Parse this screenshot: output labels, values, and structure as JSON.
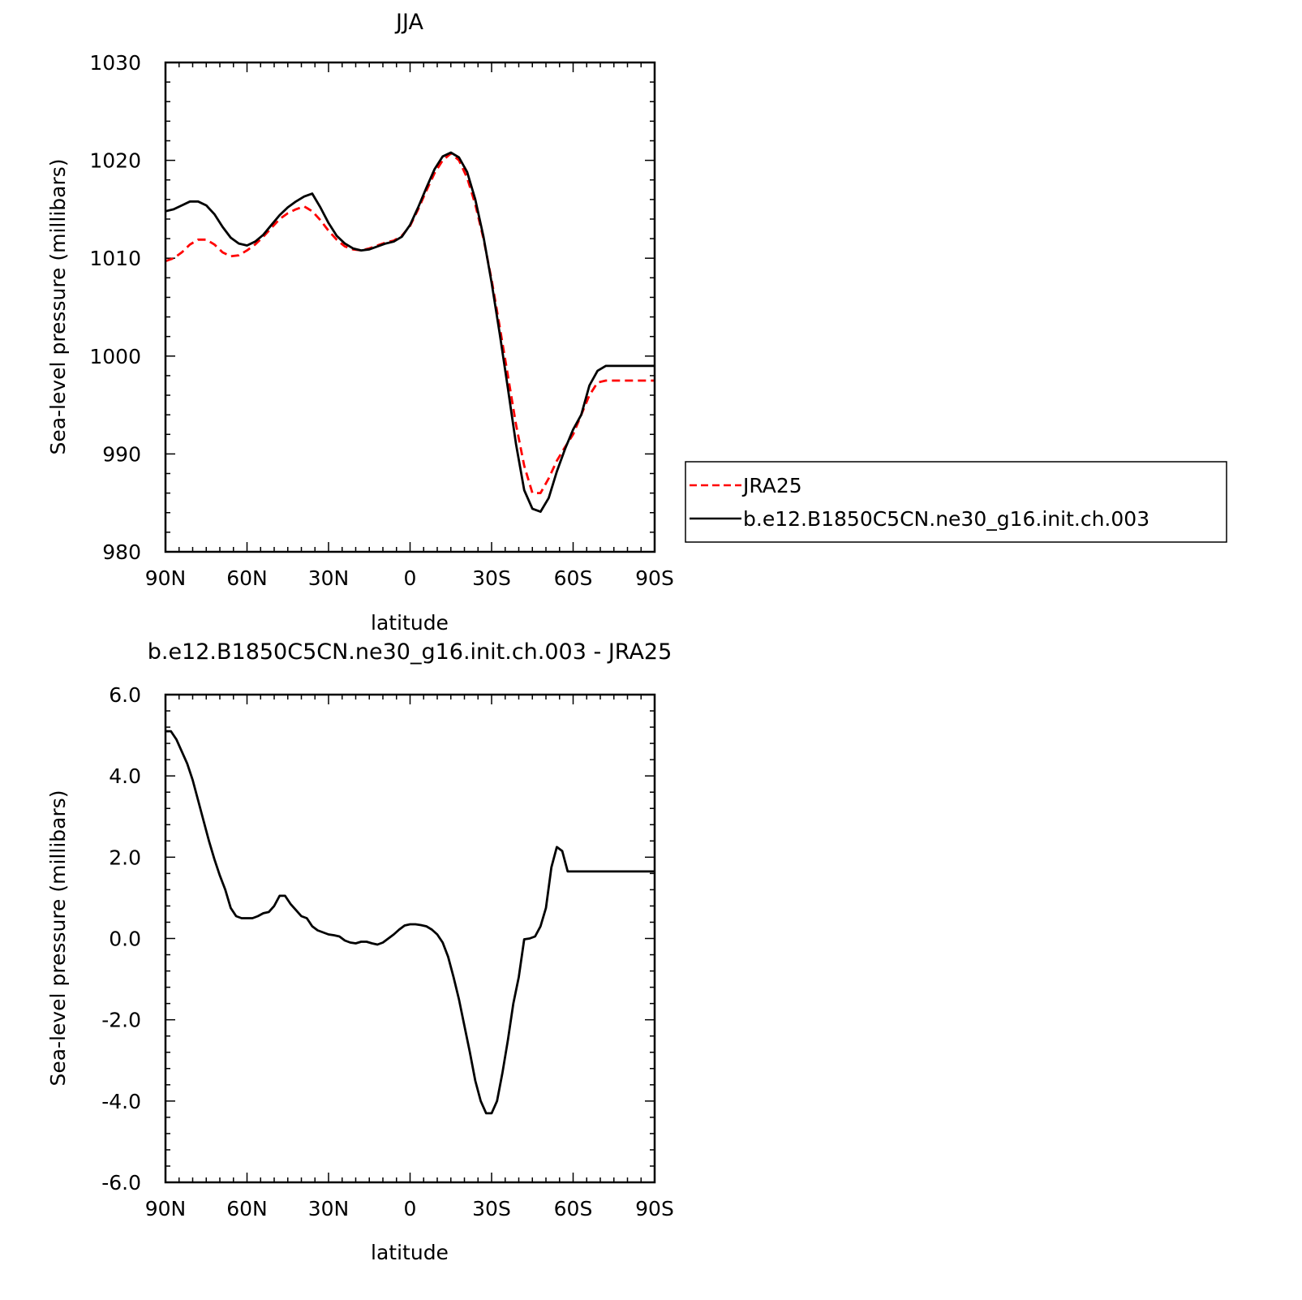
{
  "chart_data": [
    {
      "type": "line",
      "title": "JJA",
      "xlabel": "latitude",
      "ylabel": "Sea-level pressure (millibars)",
      "xlim": [
        90,
        -90
      ],
      "ylim": [
        980,
        1030
      ],
      "xticks": [
        90,
        60,
        30,
        0,
        -30,
        -60,
        -90
      ],
      "xtick_labels": [
        "90N",
        "60N",
        "30N",
        "0",
        "30S",
        "60S",
        "90S"
      ],
      "yticks": [
        980,
        990,
        1000,
        1010,
        1020,
        1030
      ],
      "ytick_labels": [
        "980",
        "990",
        "1000",
        "1010",
        "1020",
        "1030"
      ],
      "grid": false,
      "legend": {
        "placement": "right, outside plot"
      },
      "series": [
        {
          "name": "JRA25",
          "color": "#ff0000",
          "dash": "dashed",
          "x": [
            90,
            87,
            84,
            81,
            78,
            75,
            72,
            69,
            66,
            63,
            60,
            57,
            54,
            51,
            48,
            45,
            42,
            39,
            36,
            33,
            30,
            27,
            24,
            21,
            18,
            15,
            12,
            9,
            6,
            3,
            0,
            -3,
            -6,
            -9,
            -12,
            -15,
            -18,
            -21,
            -24,
            -27,
            -30,
            -33,
            -36,
            -39,
            -42,
            -45,
            -48,
            -51,
            -54,
            -57,
            -60,
            -63,
            -66,
            -69,
            -72,
            -75,
            -78,
            -81,
            -84,
            -87,
            -90
          ],
          "y": [
            1009.7,
            1010.0,
            1010.6,
            1011.4,
            1011.9,
            1011.9,
            1011.4,
            1010.6,
            1010.2,
            1010.3,
            1010.8,
            1011.4,
            1012.2,
            1013.1,
            1014.0,
            1014.6,
            1015.0,
            1015.3,
            1014.8,
            1013.9,
            1012.8,
            1011.9,
            1011.2,
            1010.9,
            1010.8,
            1011.0,
            1011.3,
            1011.6,
            1011.8,
            1012.3,
            1013.3,
            1015.0,
            1016.9,
            1018.7,
            1020.0,
            1020.7,
            1020.0,
            1018.2,
            1015.5,
            1012.0,
            1007.8,
            1003.0,
            998.0,
            993.0,
            988.8,
            986.0,
            986.0,
            987.5,
            989.3,
            990.7,
            992.0,
            994.0,
            996.0,
            997.3,
            997.5,
            997.5,
            997.5,
            997.5,
            997.5,
            997.5,
            997.5
          ]
        },
        {
          "name": "b.e12.B1850C5CN.ne30_g16.init.ch.003",
          "color": "#000000",
          "dash": "solid",
          "x": [
            90,
            87,
            84,
            81,
            78,
            75,
            72,
            69,
            66,
            63,
            60,
            57,
            54,
            51,
            48,
            45,
            42,
            39,
            36,
            33,
            30,
            27,
            24,
            21,
            18,
            15,
            12,
            9,
            6,
            3,
            0,
            -3,
            -6,
            -9,
            -12,
            -15,
            -18,
            -21,
            -24,
            -27,
            -30,
            -33,
            -36,
            -39,
            -42,
            -45,
            -48,
            -51,
            -54,
            -57,
            -60,
            -63,
            -66,
            -69,
            -72,
            -75,
            -78,
            -81,
            -84,
            -87,
            -90
          ],
          "y": [
            1014.8,
            1015.0,
            1015.4,
            1015.8,
            1015.8,
            1015.4,
            1014.5,
            1013.2,
            1012.1,
            1011.5,
            1011.3,
            1011.7,
            1012.4,
            1013.4,
            1014.4,
            1015.2,
            1015.8,
            1016.3,
            1016.6,
            1015.2,
            1013.6,
            1012.3,
            1011.5,
            1011.0,
            1010.8,
            1010.9,
            1011.2,
            1011.5,
            1011.7,
            1012.2,
            1013.4,
            1015.2,
            1017.2,
            1019.1,
            1020.4,
            1020.8,
            1020.3,
            1018.8,
            1016.0,
            1012.2,
            1007.5,
            1002.3,
            996.7,
            991.0,
            986.3,
            984.4,
            984.1,
            985.5,
            988.2,
            990.5,
            992.5,
            994.0,
            997.0,
            998.5,
            999.0,
            999.0,
            999.0,
            999.0,
            999.0,
            999.0,
            999.0
          ]
        }
      ]
    },
    {
      "type": "line",
      "title": "b.e12.B1850C5CN.ne30_g16.init.ch.003 - JRA25",
      "xlabel": "latitude",
      "ylabel": "Sea-level pressure (millibars)",
      "xlim": [
        90,
        -90
      ],
      "ylim": [
        -6,
        6
      ],
      "xticks": [
        90,
        60,
        30,
        0,
        -30,
        -60,
        -90
      ],
      "xtick_labels": [
        "90N",
        "60N",
        "30N",
        "0",
        "30S",
        "60S",
        "90S"
      ],
      "yticks": [
        -6,
        -4,
        -2,
        0,
        2,
        4,
        6
      ],
      "ytick_labels": [
        "-6.0",
        "-4.0",
        "-2.0",
        "0.0",
        "2.0",
        "4.0",
        "6.0"
      ],
      "grid": false,
      "series": [
        {
          "color": "#000000",
          "dash": "solid",
          "x": [
            90,
            88,
            86,
            84,
            82,
            80,
            78,
            76,
            74,
            72,
            70,
            68,
            66,
            64,
            62,
            60,
            58,
            56,
            54,
            52,
            50,
            48,
            46,
            44,
            42,
            40,
            38,
            36,
            34,
            32,
            30,
            28,
            26,
            24,
            22,
            20,
            18,
            16,
            14,
            12,
            10,
            8,
            6,
            4,
            2,
            0,
            -2,
            -4,
            -6,
            -8,
            -10,
            -12,
            -14,
            -16,
            -18,
            -20,
            -22,
            -24,
            -26,
            -28,
            -30,
            -32,
            -34,
            -36,
            -38,
            -40,
            -42,
            -44,
            -46,
            -48,
            -50,
            -52,
            -54,
            -56,
            -58,
            -60,
            -62,
            -64,
            -66,
            -68,
            -70,
            -72,
            -74,
            -76,
            -78,
            -80,
            -82,
            -84,
            -86,
            -88,
            -90
          ],
          "y": [
            5.1,
            5.1,
            4.9,
            4.6,
            4.3,
            3.9,
            3.4,
            2.9,
            2.4,
            1.95,
            1.55,
            1.2,
            0.75,
            0.55,
            0.5,
            0.5,
            0.5,
            0.55,
            0.62,
            0.65,
            0.8,
            1.05,
            1.05,
            0.85,
            0.7,
            0.55,
            0.5,
            0.3,
            0.2,
            0.15,
            0.1,
            0.08,
            0.05,
            -0.05,
            -0.1,
            -0.12,
            -0.08,
            -0.08,
            -0.12,
            -0.15,
            -0.1,
            0.0,
            0.1,
            0.22,
            0.32,
            0.35,
            0.35,
            0.33,
            0.3,
            0.22,
            0.1,
            -0.1,
            -0.45,
            -0.95,
            -1.5,
            -2.15,
            -2.8,
            -3.5,
            -4.0,
            -4.3,
            -4.3,
            -4.0,
            -3.3,
            -2.5,
            -1.6,
            -0.95,
            -0.02,
            0.0,
            0.05,
            0.3,
            0.75,
            1.75,
            2.25,
            2.15,
            1.65,
            1.65,
            1.65,
            1.65,
            1.65,
            1.65,
            1.65,
            1.65,
            1.65,
            1.65,
            1.65,
            1.65,
            1.65,
            1.65,
            1.65,
            1.65,
            1.65
          ]
        }
      ]
    }
  ]
}
